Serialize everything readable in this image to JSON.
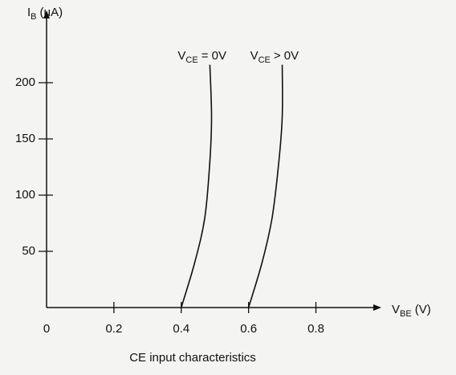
{
  "chart_data": {
    "type": "line",
    "caption": "CE input characteristics",
    "y_label": {
      "main": "I",
      "sub": "B",
      "rest": "(μA)"
    },
    "x_label": {
      "main": "V",
      "sub": "BE",
      "rest": "(V)"
    },
    "xlim": [
      0,
      0.98
    ],
    "ylim": [
      0,
      260
    ],
    "xticks": [
      0,
      0.2,
      0.4,
      0.6,
      0.8
    ],
    "yticks": [
      50,
      100,
      150,
      200
    ],
    "series": [
      {
        "label": {
          "main": "V",
          "sub": "CE",
          "rest": "= 0V"
        },
        "color": "#111111",
        "x": [
          0.4,
          0.44,
          0.47,
          0.485,
          0.49,
          0.485
        ],
        "values": [
          0,
          40,
          80,
          130,
          170,
          216
        ]
      },
      {
        "label": {
          "main": "V",
          "sub": "CE",
          "rest": "> 0V"
        },
        "color": "#111111",
        "x": [
          0.6,
          0.64,
          0.67,
          0.69,
          0.7,
          0.7
        ],
        "values": [
          0,
          40,
          80,
          130,
          170,
          216
        ]
      }
    ]
  }
}
